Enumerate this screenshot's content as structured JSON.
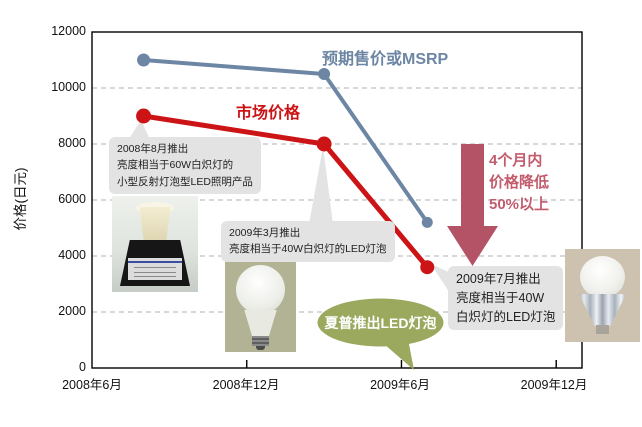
{
  "chart_data": {
    "type": "line",
    "title": "",
    "y_axis_title": "价格(日元)",
    "y_ticks": [
      "0",
      "2000",
      "4000",
      "6000",
      "8000",
      "10000",
      "12000"
    ],
    "y_gridline_values": [
      2000,
      4000,
      6000,
      8000,
      10000
    ],
    "x_tick_labels": [
      "2008年6月",
      "2008年12月",
      "2009年6月",
      "2009年12月"
    ],
    "x_tick_months": [
      0,
      6,
      12,
      18
    ],
    "ylim": [
      0,
      12000
    ],
    "xlim_months": [
      0,
      19
    ],
    "grid": "dashed horizontal gridlines, solid black plot border",
    "legend_position": "inline labels next to lines",
    "series": [
      {
        "name": "预期售价或MSRP",
        "color": "#6c86a4",
        "points": [
          {
            "label": "2008年8月",
            "month": 2,
            "value": 11000
          },
          {
            "label": "2009年3月",
            "month": 9,
            "value": 10500
          },
          {
            "label": "2009年7月",
            "month": 13,
            "value": 5200
          }
        ]
      },
      {
        "name": "市场价格",
        "color": "#cc1417",
        "points": [
          {
            "label": "2008年8月",
            "month": 2,
            "value": 9000
          },
          {
            "label": "2009年3月",
            "month": 9,
            "value": 8000
          },
          {
            "label": "2009年7月",
            "month": 13,
            "value": 3600
          }
        ]
      }
    ]
  },
  "annotations": {
    "box1": {
      "lines": [
        "2008年8月推出",
        "亮度相当于60W白炽灯的",
        "小型反射灯泡型LED照明产品"
      ]
    },
    "box2": {
      "lines": [
        "2009年3月推出",
        "亮度相当于40W白炽灯的LED灯泡"
      ]
    },
    "box3": {
      "lines": [
        "2009年7月推出",
        "亮度相当于40W",
        "白炽灯的LED灯泡"
      ]
    },
    "arrow_note": {
      "lines": [
        "4个月内",
        "价格降低",
        "50%以上"
      ]
    },
    "bubble": {
      "text": "夏普推出LED灯泡"
    }
  },
  "colors": {
    "msrp_line": "#6c86a4",
    "market_line": "#cc1417",
    "arrow": "#b55366",
    "arrow_text": "#c25c6d",
    "bubble_green": "#9aa95e",
    "annotation_bg": "#e3e3e3",
    "gridline": "#b0b0b0",
    "axis": "#000000"
  }
}
